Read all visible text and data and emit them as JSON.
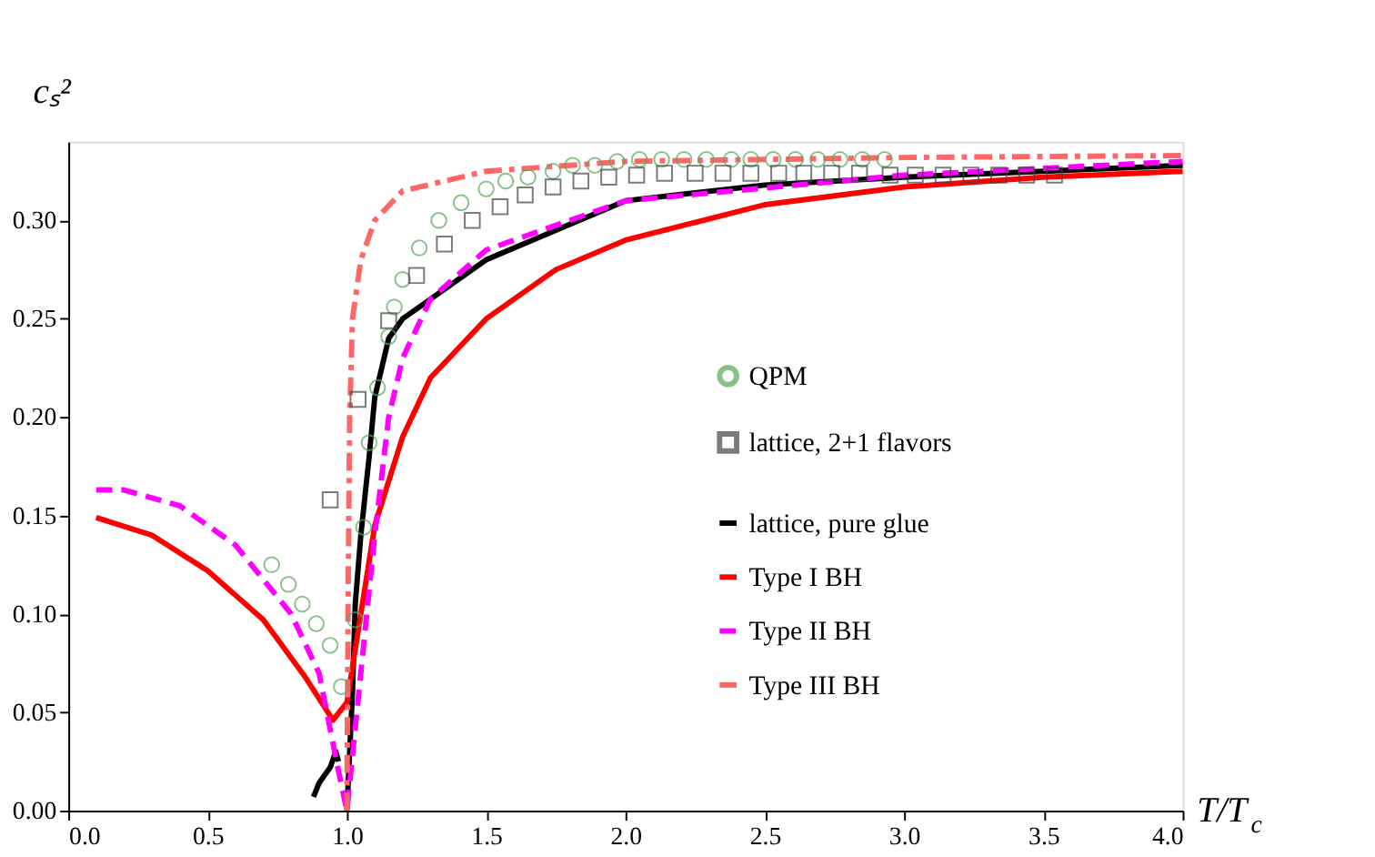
{
  "chart_data": {
    "type": "line",
    "xlabel": "T/T$_{c}$",
    "ylabel": "cₛ²",
    "xlim": [
      0,
      4.0
    ],
    "ylim": [
      0,
      0.34
    ],
    "xticks": [
      {
        "value": 0,
        "label": "0.0"
      },
      {
        "value": 0.5,
        "label": "0.5"
      },
      {
        "value": 1,
        "label": "1.0"
      },
      {
        "value": 1.5,
        "label": "1.5"
      },
      {
        "value": 2,
        "label": "2.0"
      },
      {
        "value": 2.5,
        "label": "2.5"
      },
      {
        "value": 3,
        "label": "3.0"
      },
      {
        "value": 3.5,
        "label": "3.5"
      },
      {
        "value": 4,
        "label": "4.0"
      }
    ],
    "yticks": [
      {
        "value": 0,
        "label": "0.00"
      },
      {
        "value": 0.05,
        "label": "0.05"
      },
      {
        "value": 0.1,
        "label": "0.10"
      },
      {
        "value": 0.15,
        "label": "0.15"
      },
      {
        "value": 0.2,
        "label": "0.20"
      },
      {
        "value": 0.25,
        "label": "0.25"
      },
      {
        "value": 0.3,
        "label": "0.30"
      }
    ],
    "grid": false,
    "legend": "right",
    "series": [
      {
        "name": "QPM",
        "type": "scatter",
        "marker": "circle",
        "color": "#5aa85a",
        "x": [
          0.73,
          0.79,
          0.84,
          0.89,
          0.94,
          0.98,
          1.03,
          1.06,
          1.08,
          1.11,
          1.15,
          1.17,
          1.2,
          1.26,
          1.33,
          1.41,
          1.5,
          1.57,
          1.65,
          1.74,
          1.81,
          1.89,
          1.97,
          2.05,
          2.13,
          2.21,
          2.29,
          2.38,
          2.45,
          2.53,
          2.61,
          2.69,
          2.77,
          2.85,
          2.93
        ],
        "values": [
          0.125,
          0.115,
          0.105,
          0.095,
          0.084,
          0.063,
          0.097,
          0.144,
          0.187,
          0.215,
          0.241,
          0.256,
          0.27,
          0.286,
          0.3,
          0.309,
          0.316,
          0.32,
          0.322,
          0.325,
          0.328,
          0.328,
          0.33,
          0.331,
          0.331,
          0.331,
          0.331,
          0.331,
          0.331,
          0.331,
          0.331,
          0.331,
          0.331,
          0.331,
          0.331
        ]
      },
      {
        "name": "lattice, 2+1 flavors",
        "type": "scatter",
        "marker": "square",
        "color": "#444444",
        "x": [
          0.94,
          1.04,
          1.15,
          1.25,
          1.35,
          1.45,
          1.55,
          1.64,
          1.74,
          1.84,
          1.94,
          2.04,
          2.14,
          2.25,
          2.35,
          2.45,
          2.55,
          2.64,
          2.74,
          2.84,
          2.95,
          3.04,
          3.14,
          3.24,
          3.34,
          3.44,
          3.54
        ],
        "values": [
          0.158,
          0.209,
          0.249,
          0.272,
          0.288,
          0.3,
          0.307,
          0.313,
          0.317,
          0.32,
          0.322,
          0.323,
          0.324,
          0.324,
          0.324,
          0.324,
          0.324,
          0.324,
          0.324,
          0.324,
          0.323,
          0.323,
          0.323,
          0.323,
          0.323,
          0.323,
          0.323
        ]
      },
      {
        "name": "lattice, pure glue",
        "line_style": "solid",
        "color": "#000000",
        "x": [
          0.88,
          0.9,
          0.92,
          0.94,
          0.96,
          0.97,
          0.985,
          1.0,
          1.02,
          1.03,
          1.05,
          1.08,
          1.1,
          1.15,
          1.2,
          1.3,
          1.5,
          2.0,
          2.5,
          3.0,
          4.0
        ],
        "values": [
          0.007,
          0.014,
          0.018,
          0.022,
          0.03,
          0.025,
          null,
          0.0,
          0.06,
          0.105,
          0.14,
          0.18,
          0.21,
          0.24,
          0.25,
          0.26,
          0.28,
          0.31,
          0.318,
          0.322,
          0.328
        ]
      },
      {
        "name": "Type I BH",
        "line_style": "solid",
        "color": "#ff0000",
        "x": [
          0.1,
          0.3,
          0.5,
          0.7,
          0.85,
          0.95,
          1.0,
          1.05,
          1.1,
          1.2,
          1.3,
          1.5,
          1.75,
          2.0,
          2.5,
          3.0,
          3.5,
          4.0
        ],
        "values": [
          0.149,
          0.14,
          0.122,
          0.097,
          0.068,
          0.046,
          0.055,
          0.1,
          0.145,
          0.19,
          0.22,
          0.25,
          0.275,
          0.29,
          0.308,
          0.317,
          0.322,
          0.325
        ]
      },
      {
        "name": "Type II BH",
        "line_style": "dashed",
        "color": "#ff00ff",
        "x": [
          0.1,
          0.2,
          0.4,
          0.6,
          0.8,
          0.9,
          0.97,
          1.0,
          1.05,
          1.1,
          1.15,
          1.2,
          1.3,
          1.5,
          2.0,
          3.0,
          4.0
        ],
        "values": [
          0.163,
          0.163,
          0.155,
          0.135,
          0.1,
          0.07,
          0.02,
          0.0,
          0.07,
          0.14,
          0.2,
          0.23,
          0.26,
          0.285,
          0.31,
          0.323,
          0.33
        ]
      },
      {
        "name": "Type III BH",
        "line_style": "dashdot",
        "color": "#ff6666",
        "x": [
          1.0,
          1.005,
          1.01,
          1.02,
          1.05,
          1.1,
          1.2,
          1.5,
          2.0,
          3.0,
          4.0
        ],
        "values": [
          0.0,
          0.12,
          0.2,
          0.25,
          0.28,
          0.3,
          0.315,
          0.325,
          0.33,
          0.332,
          0.333
        ]
      }
    ]
  }
}
